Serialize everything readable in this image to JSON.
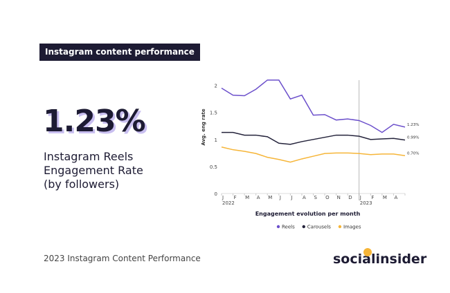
{
  "header": {
    "label": "Instagram content performance"
  },
  "headline": {
    "value": "1.23%",
    "description": "Instagram Reels Engagement Rate (by followers)"
  },
  "footer": {
    "text": "2023 Instagram Content Performance",
    "brand": "socialinsider"
  },
  "chart_data": {
    "type": "line",
    "x_title": "Engagement evolution per month",
    "y_title": "Avg. eng rate",
    "categories": [
      "J",
      "F",
      "M",
      "A",
      "M",
      "J",
      "J",
      "A",
      "S",
      "O",
      "N",
      "D",
      "J",
      "F",
      "M",
      "A",
      null
    ],
    "years": [
      {
        "category": 0,
        "label": "2022"
      },
      {
        "category": 12,
        "label": "2023"
      }
    ],
    "ylim": [
      0,
      2.2
    ],
    "yticks": [
      0,
      0.5,
      1,
      1.5,
      2
    ],
    "grid": false,
    "legend": "bottom",
    "series": [
      {
        "name": "Reels",
        "color": "#6b4fcb",
        "values": [
          1.95,
          1.82,
          1.81,
          1.93,
          2.1,
          2.1,
          1.75,
          1.82,
          1.45,
          1.46,
          1.36,
          1.38,
          1.35,
          1.26,
          1.13,
          1.28,
          1.23
        ],
        "value_labels": [
          null,
          null,
          null,
          null,
          null,
          null,
          null,
          null,
          null,
          null,
          null,
          null,
          null,
          null,
          null,
          null,
          "1.23%"
        ]
      },
      {
        "name": "Carousels",
        "color": "#23223a",
        "values": [
          1.13,
          1.13,
          1.08,
          1.08,
          1.05,
          0.93,
          0.91,
          0.96,
          1.0,
          1.04,
          1.08,
          1.08,
          1.06,
          1.0,
          1.01,
          1.02,
          0.99
        ],
        "value_labels": [
          null,
          null,
          null,
          null,
          null,
          null,
          null,
          null,
          null,
          null,
          null,
          null,
          null,
          null,
          null,
          null,
          "0.99%"
        ]
      },
      {
        "name": "Images",
        "color": "#f6b537",
        "values": [
          0.86,
          0.81,
          0.78,
          0.74,
          0.67,
          0.63,
          0.58,
          0.64,
          0.69,
          0.74,
          0.75,
          0.75,
          0.74,
          0.72,
          0.73,
          0.73,
          0.7
        ],
        "value_labels": [
          null,
          null,
          null,
          null,
          null,
          null,
          null,
          null,
          null,
          null,
          null,
          null,
          null,
          null,
          null,
          null,
          "0.70%"
        ]
      }
    ]
  }
}
